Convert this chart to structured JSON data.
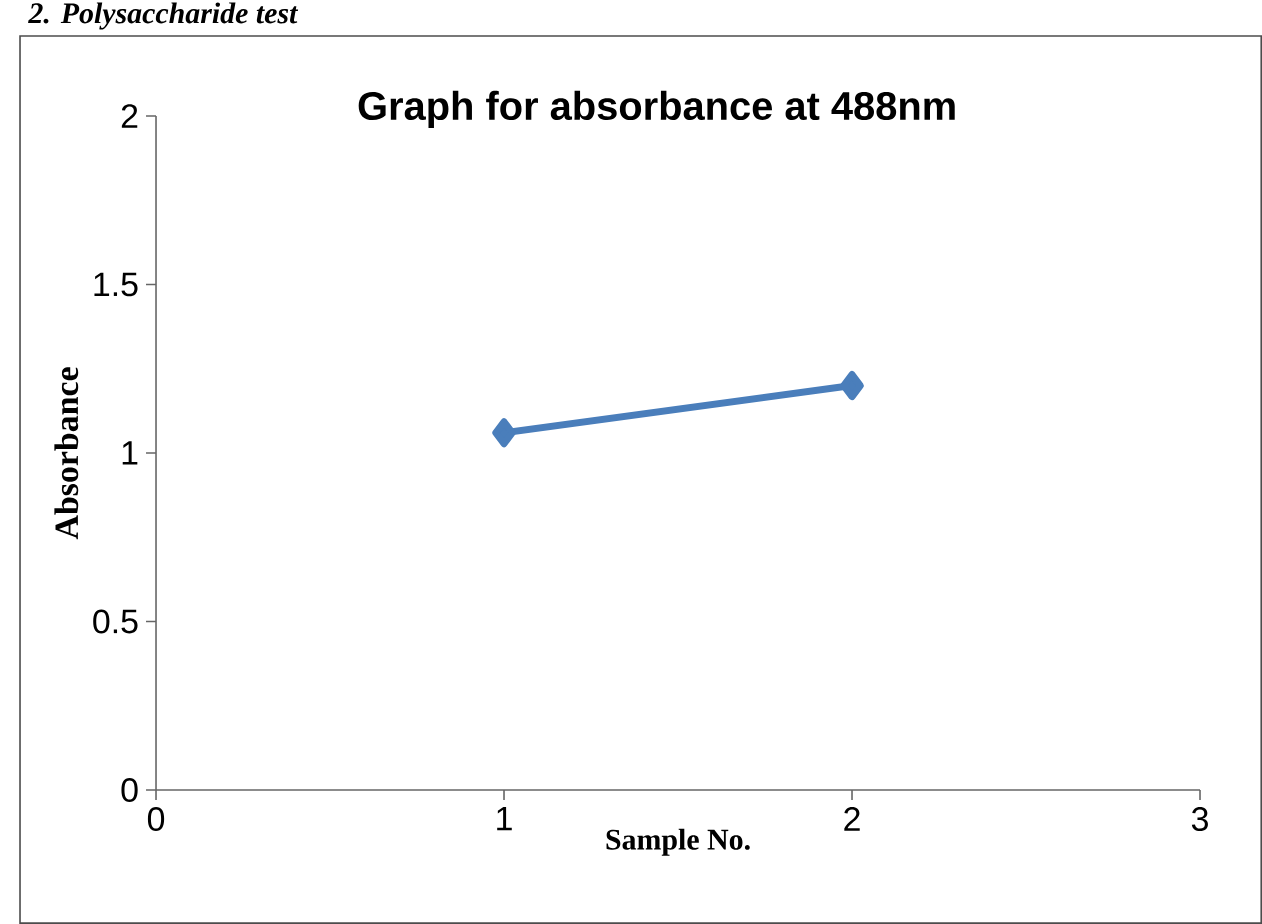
{
  "chart_data": {
    "type": "line",
    "title": "Graph for absorbance at 488nm",
    "xlabel": "Sample No.",
    "ylabel": "Absorbance",
    "annotations": [
      "2.    Polysaccharide test"
    ],
    "x": [
      1,
      2
    ],
    "series": [
      {
        "color": "#4a7ebb",
        "values": [
          1.06,
          1.2
        ]
      }
    ],
    "xlim": [
      0,
      3
    ],
    "xticks": [
      0,
      1,
      2,
      3
    ],
    "ylim": [
      0,
      2
    ],
    "yticks": [
      0,
      0.5,
      1,
      1.5,
      2
    ],
    "marker": "diamond",
    "line_style": "solid",
    "grid": false
  }
}
